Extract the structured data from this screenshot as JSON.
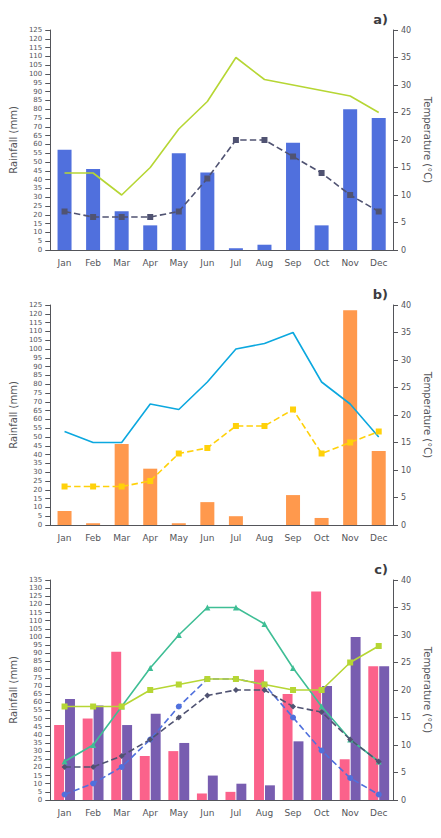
{
  "chart_data": [
    {
      "type": "bar",
      "annotation": "a)",
      "categories": [
        "Jan",
        "Feb",
        "Mar",
        "Apr",
        "May",
        "Jun",
        "Jul",
        "Aug",
        "Sep",
        "Oct",
        "Nov",
        "Dec"
      ],
      "ylabel": "Rainfall (mm)",
      "y2label": "Temperature (°C)",
      "ylim": [
        0,
        125
      ],
      "yticks": [
        0,
        5,
        10,
        15,
        20,
        25,
        30,
        35,
        40,
        45,
        50,
        55,
        60,
        65,
        70,
        75,
        80,
        85,
        90,
        95,
        100,
        105,
        110,
        115,
        120,
        125
      ],
      "y2lim": [
        0,
        40
      ],
      "y2ticks": [
        0,
        5,
        10,
        15,
        20,
        25,
        30,
        35,
        40
      ],
      "grid": false,
      "series": [
        {
          "type": "bar",
          "values": [
            57,
            46,
            22,
            14,
            55,
            44,
            1,
            3,
            61,
            14,
            80,
            75
          ]
        },
        {
          "type": "line",
          "axis": "y2",
          "line_style": "solid",
          "marker": "none",
          "values": [
            14,
            14,
            10,
            15,
            22,
            27,
            35,
            31,
            30,
            29,
            28,
            25
          ]
        },
        {
          "type": "line",
          "axis": "y2",
          "line_style": "dashed",
          "marker": "square",
          "values": [
            7,
            6,
            6,
            6,
            7,
            13,
            20,
            20,
            17,
            14,
            10,
            7
          ]
        }
      ]
    },
    {
      "type": "bar",
      "annotation": "b)",
      "categories": [
        "Jan",
        "Feb",
        "Mar",
        "Apr",
        "May",
        "Jun",
        "Jul",
        "Aug",
        "Sep",
        "Oct",
        "Nov",
        "Dec"
      ],
      "ylabel": "Rainfall (mm)",
      "y2label": "Temperature (°C)",
      "ylim": [
        0,
        125
      ],
      "yticks": [
        0,
        5,
        10,
        15,
        20,
        25,
        30,
        35,
        40,
        45,
        50,
        55,
        60,
        65,
        70,
        75,
        80,
        85,
        90,
        95,
        100,
        105,
        110,
        115,
        120,
        125
      ],
      "y2lim": [
        0,
        40
      ],
      "y2ticks": [
        0,
        5,
        10,
        15,
        20,
        25,
        30,
        35,
        40
      ],
      "grid": false,
      "series": [
        {
          "type": "bar",
          "values": [
            8,
            1,
            46,
            32,
            1,
            13,
            5,
            0,
            17,
            4,
            122,
            42
          ]
        },
        {
          "type": "line",
          "axis": "y2",
          "line_style": "solid",
          "marker": "none",
          "values": [
            17,
            15,
            15,
            22,
            21,
            26,
            32,
            33,
            35,
            26,
            22,
            16
          ]
        },
        {
          "type": "line",
          "axis": "y2",
          "line_style": "dashed",
          "marker": "square",
          "values": [
            7,
            7,
            7,
            8,
            13,
            14,
            18,
            18,
            21,
            13,
            15,
            17
          ]
        }
      ]
    },
    {
      "type": "bar",
      "annotation": "c)",
      "categories": [
        "Jan",
        "Feb",
        "Mar",
        "Apr",
        "May",
        "Jun",
        "Jul",
        "Aug",
        "Sep",
        "Oct",
        "Nov",
        "Dec"
      ],
      "ylabel": "Rainfall (mm)",
      "y2label": "Temperature (°C)",
      "ylim": [
        0,
        135
      ],
      "yticks": [
        0,
        5,
        10,
        15,
        20,
        25,
        30,
        35,
        40,
        45,
        50,
        55,
        60,
        65,
        70,
        75,
        80,
        85,
        90,
        95,
        100,
        105,
        110,
        115,
        120,
        125,
        130,
        135
      ],
      "y2lim": [
        0,
        40
      ],
      "y2ticks": [
        0,
        5,
        10,
        15,
        20,
        25,
        30,
        35,
        40
      ],
      "grid": false,
      "series": [
        {
          "type": "bar",
          "values": [
            46,
            50,
            91,
            27,
            30,
            4,
            5,
            80,
            65,
            128,
            25,
            82
          ]
        },
        {
          "type": "bar",
          "values": [
            62,
            58,
            46,
            53,
            35,
            15,
            10,
            9,
            36,
            70,
            100,
            82
          ]
        },
        {
          "type": "line",
          "axis": "y2",
          "line_style": "solid",
          "marker": "triangle",
          "values": [
            7,
            10,
            17,
            24,
            30,
            35,
            35,
            32,
            24,
            17,
            11,
            7
          ]
        },
        {
          "type": "line",
          "axis": "y2",
          "line_style": "dashed",
          "marker": "circle",
          "values": [
            1,
            3,
            6,
            11,
            17,
            22,
            22,
            21,
            15,
            9,
            4,
            1
          ]
        },
        {
          "type": "line",
          "axis": "y2",
          "line_style": "solid",
          "marker": "square",
          "values": [
            17,
            17,
            17,
            20,
            21,
            22,
            22,
            21,
            20,
            20,
            25,
            28
          ]
        },
        {
          "type": "line",
          "axis": "y2",
          "line_style": "dashed",
          "marker": "diamond",
          "values": [
            6,
            6,
            8,
            11,
            15,
            19,
            20,
            20,
            17,
            16,
            11,
            7
          ]
        }
      ]
    }
  ]
}
